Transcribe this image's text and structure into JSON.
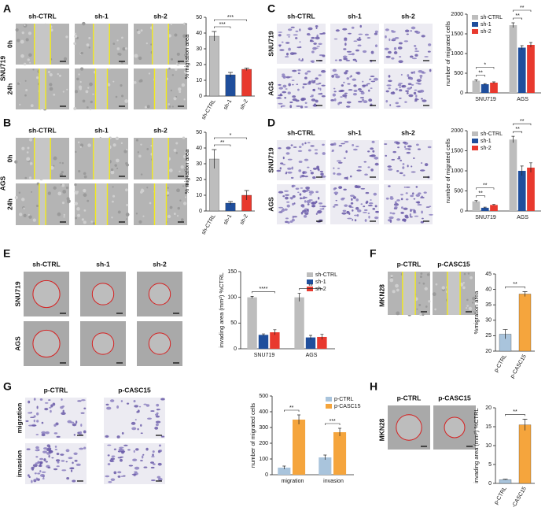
{
  "panels": [
    {
      "letter": "A",
      "columns": [
        "sh-CTRL",
        "sh-1",
        "sh-2"
      ],
      "rows": [
        "0h",
        "24h"
      ],
      "cell_line": "SNU719"
    },
    {
      "letter": "B",
      "columns": [
        "sh-CTRL",
        "sh-1",
        "sh-2"
      ],
      "rows": [
        "0h",
        "24h"
      ],
      "cell_line": "AGS"
    },
    {
      "letter": "C",
      "columns": [
        "sh-CTRL",
        "sh-1",
        "sh-2"
      ],
      "rows": [
        "SNU719",
        "AGS"
      ]
    },
    {
      "letter": "D",
      "columns": [
        "sh-CTRL",
        "sh-1",
        "sh-2"
      ],
      "rows": [
        "SNU719",
        "AGS"
      ]
    },
    {
      "letter": "E",
      "columns": [
        "sh-CTRL",
        "sh-1",
        "sh-2"
      ],
      "rows": [
        "SNU719",
        "AGS"
      ]
    },
    {
      "letter": "F",
      "columns": [
        "p-CTRL",
        "p-CASC15"
      ],
      "cell_line": "MKN28"
    },
    {
      "letter": "G",
      "columns": [
        "p-CTRL",
        "p-CASC15"
      ],
      "rows": [
        "migration",
        "invasion"
      ]
    },
    {
      "letter": "H",
      "columns": [
        "p-CTRL",
        "p-CASC15"
      ],
      "cell_line": "MKN28"
    }
  ],
  "chart_data": [
    {
      "type": "bar",
      "ylabel": "% migration area",
      "categories": [
        "sh-CTRL",
        "sh-1",
        "sh-2"
      ],
      "values": [
        38,
        13.5,
        17
      ],
      "errors": [
        3,
        1.5,
        0.8
      ],
      "colors": [
        "#bdbdbd",
        "#1f4e9c",
        "#e8392e"
      ],
      "ylim": [
        0,
        50
      ],
      "yticks": [
        0,
        10,
        20,
        30,
        40,
        50
      ],
      "annotations": [
        "***",
        "***"
      ]
    },
    {
      "type": "bar",
      "ylabel": "% migration area",
      "categories": [
        "sh-CTRL",
        "sh-1",
        "sh-2"
      ],
      "values": [
        33,
        5,
        10
      ],
      "errors": [
        6,
        1,
        3
      ],
      "colors": [
        "#bdbdbd",
        "#1f4e9c",
        "#e8392e"
      ],
      "ylim": [
        0,
        50
      ],
      "yticks": [
        0,
        10,
        20,
        30,
        40,
        50
      ],
      "annotations": [
        "*",
        "**"
      ]
    },
    {
      "type": "grouped_bar",
      "ylabel": "number of migrated cells",
      "categories": [
        "SNU719",
        "AGS"
      ],
      "series": [
        {
          "name": "sh-CTRL",
          "color": "#bdbdbd",
          "values": [
            310,
            1720
          ],
          "errors": [
            20,
            60
          ]
        },
        {
          "name": "sh-1",
          "color": "#1f4e9c",
          "values": [
            220,
            1150
          ],
          "errors": [
            15,
            50
          ]
        },
        {
          "name": "sh-2",
          "color": "#e8392e",
          "values": [
            260,
            1220
          ],
          "errors": [
            20,
            60
          ]
        }
      ],
      "ylim": [
        0,
        2000
      ],
      "yticks": [
        0,
        500,
        1000,
        1500,
        2000
      ],
      "legend": "upper left",
      "annotations": [
        "**",
        "**",
        "*",
        "**"
      ]
    },
    {
      "type": "grouped_bar",
      "ylabel": "number of migrated cells",
      "categories": [
        "SNU719",
        "AGS"
      ],
      "series": [
        {
          "name": "sh-CTRL",
          "color": "#bdbdbd",
          "values": [
            240,
            1780
          ],
          "errors": [
            20,
            80
          ]
        },
        {
          "name": "sh-1",
          "color": "#1f4e9c",
          "values": [
            80,
            1000
          ],
          "errors": [
            15,
            120
          ]
        },
        {
          "name": "sh-2",
          "color": "#e8392e",
          "values": [
            150,
            1080
          ],
          "errors": [
            15,
            120
          ]
        }
      ],
      "ylim": [
        0,
        2000
      ],
      "yticks": [
        0,
        500,
        1000,
        1500,
        2000
      ],
      "legend": "upper left",
      "annotations": [
        "**",
        "**",
        "**",
        "**"
      ]
    },
    {
      "type": "grouped_bar",
      "ylabel": "invading area (mm²) %CTRL",
      "categories": [
        "SNU719",
        "AGS"
      ],
      "series": [
        {
          "name": "sh-CTRL",
          "color": "#bdbdbd",
          "values": [
            100,
            100
          ],
          "errors": [
            2,
            8
          ]
        },
        {
          "name": "sh-1",
          "color": "#1f4e9c",
          "values": [
            27,
            22
          ],
          "errors": [
            2,
            4
          ]
        },
        {
          "name": "sh-2",
          "color": "#e8392e",
          "values": [
            32,
            23
          ],
          "errors": [
            5,
            5
          ]
        }
      ],
      "ylim": [
        0,
        150
      ],
      "yticks": [
        0,
        50,
        100,
        150
      ],
      "legend": "upper right",
      "annotations": [
        "****",
        "**"
      ]
    },
    {
      "type": "bar",
      "ylabel": "%migration area",
      "categories": [
        "p-CTRL",
        "p-CASC15"
      ],
      "values": [
        25.5,
        38.5
      ],
      "errors": [
        1.5,
        0.8
      ],
      "colors": [
        "#a9c4dc",
        "#f5a53d"
      ],
      "ylim": [
        20,
        45
      ],
      "yticks": [
        20,
        25,
        30,
        35,
        40,
        45
      ],
      "annotations": [
        "**"
      ]
    },
    {
      "type": "grouped_bar",
      "ylabel": "number of migrated cells",
      "categories": [
        "migration",
        "invasion"
      ],
      "series": [
        {
          "name": "p-CTRL",
          "color": "#a9c4dc",
          "values": [
            45,
            110
          ],
          "errors": [
            10,
            15
          ]
        },
        {
          "name": "p-CASC15",
          "color": "#f5a53d",
          "values": [
            350,
            270
          ],
          "errors": [
            30,
            25
          ]
        }
      ],
      "ylim": [
        0,
        500
      ],
      "yticks": [
        0,
        100,
        200,
        300,
        400,
        500
      ],
      "legend": "upper right",
      "annotations": [
        "**",
        "***"
      ]
    },
    {
      "type": "bar",
      "ylabel": "invading area (mm²) %CTRL",
      "categories": [
        "p-CTRL",
        "p-CASC15"
      ],
      "values": [
        1,
        15.5
      ],
      "errors": [
        0.1,
        1.5
      ],
      "colors": [
        "#a9c4dc",
        "#f5a53d"
      ],
      "ylim": [
        0,
        20
      ],
      "yticks": [
        0,
        5,
        10,
        15,
        20
      ],
      "annotations": [
        "**"
      ]
    }
  ]
}
